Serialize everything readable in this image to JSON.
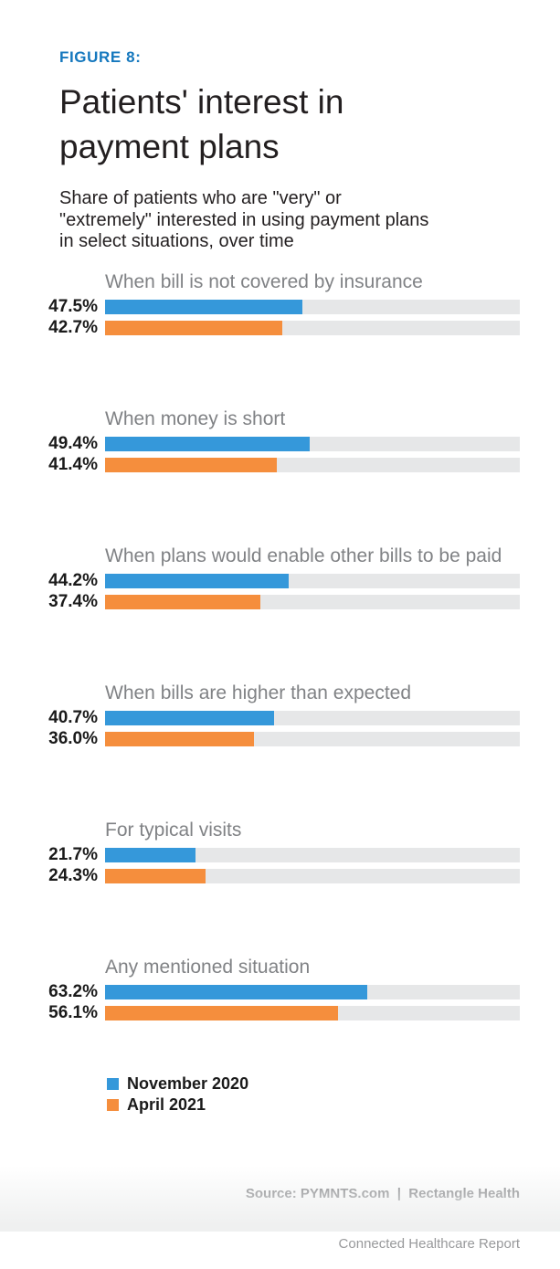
{
  "figure_label": "FIGURE 8:",
  "title": "Patients' interest in\npayment plans",
  "subtitle": "Share of patients who are \"very\" or\n\"extremely\" interested in using payment plans\nin select situations, over time",
  "chart_data": {
    "type": "bar",
    "orientation": "horizontal",
    "unit": "percent",
    "xlim": [
      0,
      100
    ],
    "grid": false,
    "legend_position": "bottom-left",
    "categories": [
      "When bill is not covered by insurance",
      "When money is short",
      "When plans would enable other bills to be paid",
      "When bills are higher than expected",
      "For typical visits",
      "Any mentioned situation"
    ],
    "series": [
      {
        "name": "November 2020",
        "color": "#3598DA",
        "values": [
          47.5,
          49.4,
          44.2,
          40.7,
          21.7,
          63.2
        ]
      },
      {
        "name": "April 2021",
        "color": "#F58E3D",
        "values": [
          42.7,
          41.4,
          37.4,
          36.0,
          24.3,
          56.1
        ]
      }
    ],
    "value_labels": [
      [
        "47.5%",
        "42.7%"
      ],
      [
        "49.4%",
        "41.4%"
      ],
      [
        "44.2%",
        "37.4%"
      ],
      [
        "40.7%",
        "36.0%"
      ],
      [
        "21.7%",
        "24.3%"
      ],
      [
        "63.2%",
        "56.1%"
      ]
    ],
    "track_color": "#E6E7E8"
  },
  "legend": {
    "items": [
      {
        "label": "November 2020",
        "color": "#3598DA"
      },
      {
        "label": "April 2021",
        "color": "#F58E3D"
      }
    ]
  },
  "footer": {
    "source_line": "Source: PYMNTS.com  |  Rectangle Health",
    "report_line": "Connected Healthcare Report"
  },
  "colors": {
    "figure_label": "#1578BE",
    "title_text": "#231F20",
    "group_label": "#808285",
    "bar_blue": "#3598DA",
    "bar_orange": "#F58E3D",
    "bar_track": "#E6E7E8"
  }
}
